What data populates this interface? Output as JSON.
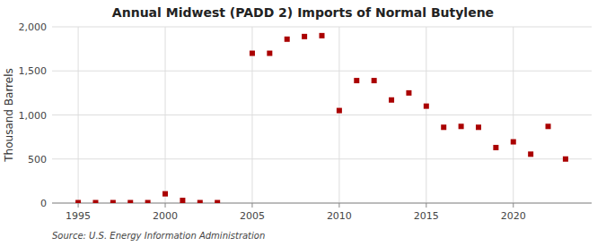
{
  "chart_data": {
    "type": "scatter",
    "title": "Annual Midwest (PADD 2) Imports of Normal Butylene",
    "ylabel": "Thousand Barrels",
    "source": "Source: U.S. Energy Information Administration",
    "x": [
      1995,
      1996,
      1997,
      1998,
      1999,
      2000,
      2001,
      2002,
      2003,
      2005,
      2006,
      2007,
      2008,
      2009,
      2010,
      2011,
      2012,
      2013,
      2014,
      2015,
      2016,
      2017,
      2018,
      2019,
      2020,
      2021,
      2022,
      2023
    ],
    "values": [
      5,
      5,
      5,
      5,
      5,
      105,
      30,
      5,
      5,
      1700,
      1700,
      1860,
      1890,
      1900,
      1050,
      1390,
      1390,
      1170,
      1250,
      1100,
      860,
      870,
      860,
      630,
      695,
      555,
      870,
      500
    ],
    "color": "#aa0000",
    "marker": "square",
    "xlim": [
      1993.5,
      2024.5
    ],
    "ylim": [
      0,
      2000
    ],
    "xticks": [
      1995,
      2000,
      2005,
      2010,
      2015,
      2020
    ],
    "yticks": [
      0,
      500,
      {
        "value": 1000,
        "label": "1,000"
      },
      {
        "value": 1500,
        "label": "1,500"
      },
      {
        "value": 2000,
        "label": "2,000"
      }
    ],
    "grid": true
  }
}
